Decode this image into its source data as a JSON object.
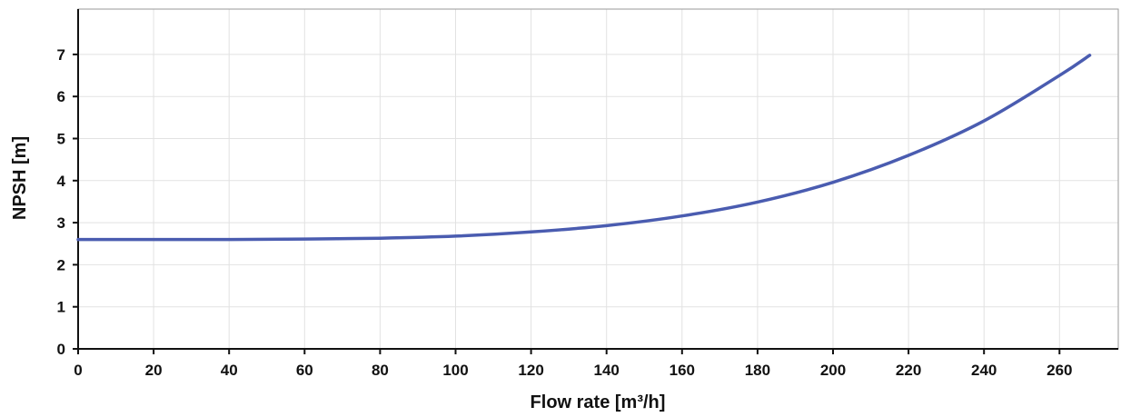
{
  "chart_data": {
    "type": "line",
    "xlabel": "Flow rate [m³/h]",
    "ylabel": "NPSH [m]",
    "xlim": [
      0,
      275
    ],
    "ylim": [
      0,
      8
    ],
    "x_ticks": [
      0,
      20,
      40,
      60,
      80,
      100,
      120,
      140,
      160,
      180,
      200,
      220,
      240,
      260
    ],
    "y_ticks": [
      0,
      1,
      2,
      3,
      4,
      5,
      6,
      7
    ],
    "grid": true,
    "series": [
      {
        "color": "#4a5cb0",
        "x": [
          0,
          20,
          40,
          60,
          80,
          100,
          120,
          140,
          160,
          180,
          200,
          220,
          240,
          260,
          268
        ],
        "y": [
          2.6,
          2.6,
          2.6,
          2.61,
          2.63,
          2.68,
          2.78,
          2.93,
          3.16,
          3.49,
          3.96,
          4.6,
          5.42,
          6.5,
          6.98
        ]
      }
    ]
  }
}
